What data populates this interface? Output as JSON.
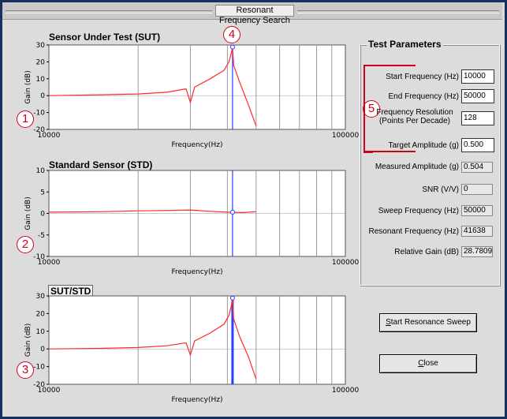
{
  "window": {
    "title": "Resonant Frequency Search"
  },
  "plots": [
    {
      "title": "Sensor Under Test (SUT)",
      "ylabel": "Gain (dB)",
      "xlabel": "Frequency(Hz)",
      "yticks": [
        "30",
        "20",
        "10",
        "0",
        "-10",
        "-20"
      ],
      "xticks": [
        "10000",
        "100000"
      ]
    },
    {
      "title": "Standard Sensor (STD)",
      "ylabel": "Gain (dB)",
      "xlabel": "Frequency(Hz)",
      "yticks": [
        "10",
        "5",
        "0",
        "-5",
        "-10"
      ],
      "xticks": [
        "10000",
        "100000"
      ]
    },
    {
      "title": "SUT/STD",
      "ylabel": "Gain (dB)",
      "xlabel": "Frequency(Hz)",
      "yticks": [
        "30",
        "20",
        "10",
        "0",
        "-10",
        "-20"
      ],
      "xticks": [
        "10000",
        "100000"
      ]
    }
  ],
  "callouts": {
    "c1": "1",
    "c2": "2",
    "c3": "3",
    "c4": "4",
    "c5": "5"
  },
  "params": {
    "title": "Test Parameters",
    "start_freq_label": "Start Frequency (Hz)",
    "start_freq": "10000",
    "end_freq_label": "End Frequency (Hz)",
    "end_freq": "50000",
    "freq_res_label_1": "Frequency Resolution",
    "freq_res_label_2": "(Points Per Decade)",
    "freq_res": "128",
    "target_amp_label": "Target Amplitude (g)",
    "target_amp": "0.500",
    "measured_amp_label": "Measured Amplitude (g)",
    "measured_amp": "0.504",
    "snr_label": "SNR (V/V)",
    "snr": "0",
    "sweep_freq_label": "Sweep Frequency (Hz)",
    "sweep_freq": "50000",
    "resonant_freq_label": "Resonant Frequency (Hz)",
    "resonant_freq": "41638",
    "relative_gain_label": "Relative Gain (dB)",
    "relative_gain": "28.7809"
  },
  "buttons": {
    "start_prefix": "S",
    "start_rest": "tart Resonance Sweep",
    "close_prefix": "C",
    "close_rest": "lose"
  },
  "colors": {
    "curve": "#ff2a2a",
    "marker": "#2a3cff",
    "grid": "#9a9a9a",
    "plot_bg": "#ffffff"
  },
  "chart_data": [
    {
      "type": "line",
      "title": "Sensor Under Test (SUT)",
      "xlabel": "Frequency(Hz)",
      "ylabel": "Gain (dB)",
      "xscale": "log",
      "xlim": [
        10000,
        100000
      ],
      "ylim": [
        -20,
        30
      ],
      "series": [
        {
          "x": [
            10000,
            15000,
            20000,
            25000,
            29000,
            30000,
            31000,
            35000,
            39000,
            40500,
            41200,
            41638,
            42000,
            44000,
            47000,
            50000
          ],
          "y": [
            0,
            0.5,
            1,
            2,
            4,
            -4,
            5,
            10,
            15,
            20,
            25,
            28.8,
            18,
            8,
            -5,
            -18
          ]
        }
      ],
      "marker_x": 41638
    },
    {
      "type": "line",
      "title": "Standard Sensor (STD)",
      "xlabel": "Frequency(Hz)",
      "ylabel": "Gain (dB)",
      "xscale": "log",
      "xlim": [
        10000,
        100000
      ],
      "ylim": [
        -10,
        10
      ],
      "series": [
        {
          "x": [
            10000,
            15000,
            20000,
            25000,
            30000,
            35000,
            40000,
            45000,
            50000
          ],
          "y": [
            0.3,
            0.4,
            0.6,
            0.7,
            0.8,
            0.5,
            0.3,
            0.2,
            0.4
          ]
        }
      ],
      "marker_x": 41638
    },
    {
      "type": "line",
      "title": "SUT/STD",
      "xlabel": "Frequency(Hz)",
      "ylabel": "Gain (dB)",
      "xscale": "log",
      "xlim": [
        10000,
        100000
      ],
      "ylim": [
        -20,
        30
      ],
      "series": [
        {
          "x": [
            10000,
            15000,
            20000,
            25000,
            29000,
            30000,
            31000,
            35000,
            39000,
            40500,
            41200,
            41638,
            42000,
            44000,
            47000,
            50000
          ],
          "y": [
            0,
            0.3,
            0.8,
            1.8,
            3.5,
            -3.5,
            4.5,
            9,
            14,
            19,
            24,
            28.8,
            17,
            7,
            -4,
            -17
          ]
        }
      ],
      "marker_x": 41638
    }
  ]
}
